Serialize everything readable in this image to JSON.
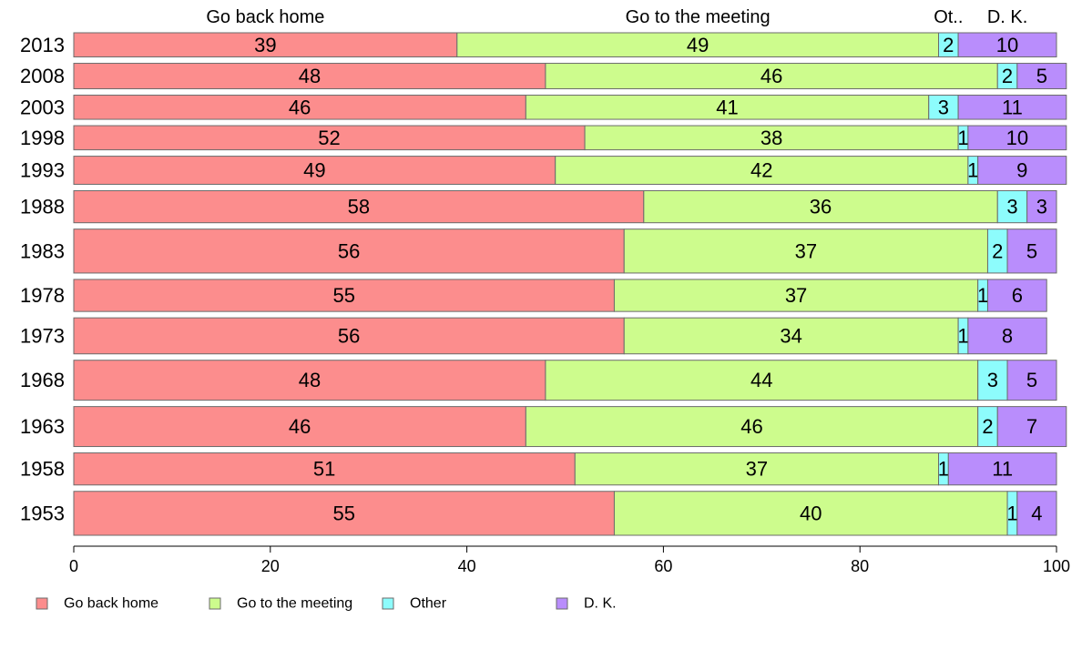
{
  "chart_data": {
    "type": "bar",
    "orientation": "horizontal",
    "stacked": true,
    "categories": [
      "2013",
      "2008",
      "2003",
      "1998",
      "1993",
      "1988",
      "1983",
      "1978",
      "1973",
      "1968",
      "1963",
      "1958",
      "1953"
    ],
    "series": [
      {
        "name": "Go back home",
        "color": "#fc8d8d",
        "values": [
          39,
          48,
          46,
          52,
          49,
          58,
          56,
          55,
          56,
          48,
          46,
          51,
          55
        ]
      },
      {
        "name": "Go to the meeting",
        "color": "#cdfc8d",
        "values": [
          49,
          46,
          41,
          38,
          42,
          36,
          37,
          37,
          34,
          44,
          46,
          37,
          40
        ]
      },
      {
        "name": "Other",
        "color": "#8dfcfc",
        "values": [
          2,
          2,
          3,
          1,
          1,
          3,
          2,
          1,
          1,
          3,
          2,
          1,
          1
        ]
      },
      {
        "name": "D. K.",
        "color": "#b98dfc",
        "values": [
          10,
          5,
          11,
          10,
          9,
          3,
          5,
          6,
          8,
          5,
          7,
          11,
          4
        ]
      }
    ],
    "relative_widths": [
      0.55,
      0.58,
      0.55,
      0.55,
      0.64,
      0.73,
      1.0,
      0.73,
      0.82,
      0.91,
      0.91,
      0.73,
      1.0
    ],
    "top_labels": [
      "Go back home",
      "Go to the meeting",
      "Ot..",
      "D. K."
    ],
    "xticks": [
      0,
      20,
      40,
      60,
      80,
      100
    ],
    "xlim": [
      0,
      100
    ],
    "legend_position": "bottom",
    "grid": false
  }
}
